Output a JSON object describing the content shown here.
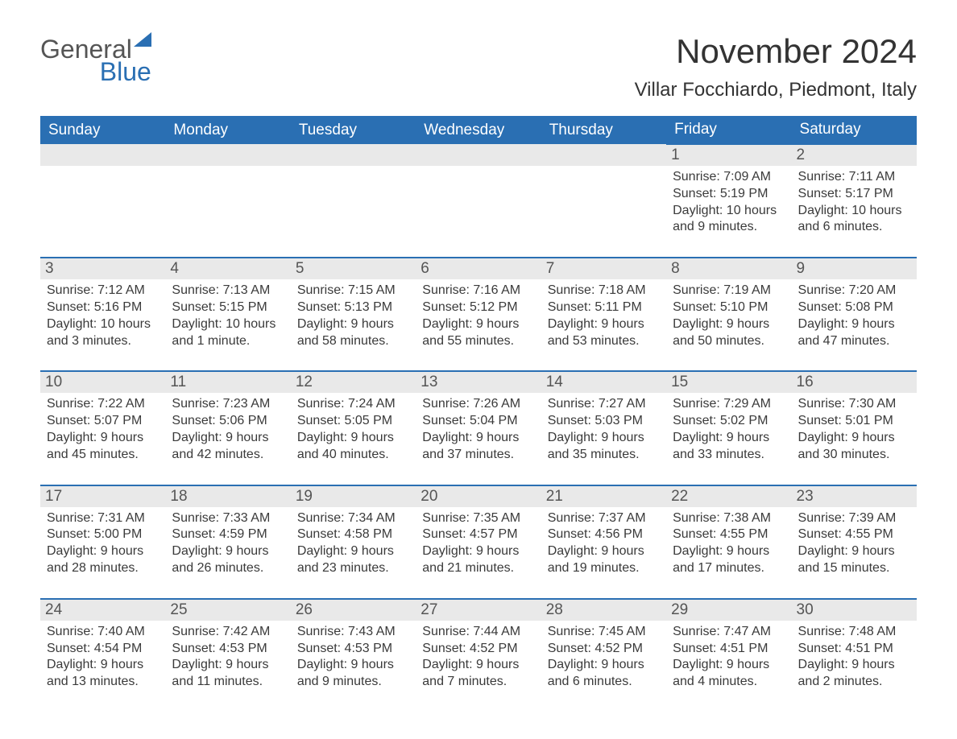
{
  "logo": {
    "part1": "General",
    "part2": "Blue"
  },
  "title": "November 2024",
  "location": "Villar Focchiardo, Piedmont, Italy",
  "colors": {
    "header_bg": "#2a6fb3",
    "header_text": "#ffffff",
    "day_num_bg": "#e9e9e9",
    "day_border": "#2a6fb3",
    "text": "#3a3a3a",
    "background": "#ffffff"
  },
  "typography": {
    "title_fontsize": 42,
    "location_fontsize": 24,
    "dayheader_fontsize": 19,
    "body_fontsize": 16
  },
  "layout": {
    "columns": 7,
    "rows": 5
  },
  "day_headers": [
    "Sunday",
    "Monday",
    "Tuesday",
    "Wednesday",
    "Thursday",
    "Friday",
    "Saturday"
  ],
  "weeks": [
    [
      null,
      null,
      null,
      null,
      null,
      {
        "n": "1",
        "sunrise": "7:09 AM",
        "sunset": "5:19 PM",
        "daylight": "10 hours and 9 minutes."
      },
      {
        "n": "2",
        "sunrise": "7:11 AM",
        "sunset": "5:17 PM",
        "daylight": "10 hours and 6 minutes."
      }
    ],
    [
      {
        "n": "3",
        "sunrise": "7:12 AM",
        "sunset": "5:16 PM",
        "daylight": "10 hours and 3 minutes."
      },
      {
        "n": "4",
        "sunrise": "7:13 AM",
        "sunset": "5:15 PM",
        "daylight": "10 hours and 1 minute."
      },
      {
        "n": "5",
        "sunrise": "7:15 AM",
        "sunset": "5:13 PM",
        "daylight": "9 hours and 58 minutes."
      },
      {
        "n": "6",
        "sunrise": "7:16 AM",
        "sunset": "5:12 PM",
        "daylight": "9 hours and 55 minutes."
      },
      {
        "n": "7",
        "sunrise": "7:18 AM",
        "sunset": "5:11 PM",
        "daylight": "9 hours and 53 minutes."
      },
      {
        "n": "8",
        "sunrise": "7:19 AM",
        "sunset": "5:10 PM",
        "daylight": "9 hours and 50 minutes."
      },
      {
        "n": "9",
        "sunrise": "7:20 AM",
        "sunset": "5:08 PM",
        "daylight": "9 hours and 47 minutes."
      }
    ],
    [
      {
        "n": "10",
        "sunrise": "7:22 AM",
        "sunset": "5:07 PM",
        "daylight": "9 hours and 45 minutes."
      },
      {
        "n": "11",
        "sunrise": "7:23 AM",
        "sunset": "5:06 PM",
        "daylight": "9 hours and 42 minutes."
      },
      {
        "n": "12",
        "sunrise": "7:24 AM",
        "sunset": "5:05 PM",
        "daylight": "9 hours and 40 minutes."
      },
      {
        "n": "13",
        "sunrise": "7:26 AM",
        "sunset": "5:04 PM",
        "daylight": "9 hours and 37 minutes."
      },
      {
        "n": "14",
        "sunrise": "7:27 AM",
        "sunset": "5:03 PM",
        "daylight": "9 hours and 35 minutes."
      },
      {
        "n": "15",
        "sunrise": "7:29 AM",
        "sunset": "5:02 PM",
        "daylight": "9 hours and 33 minutes."
      },
      {
        "n": "16",
        "sunrise": "7:30 AM",
        "sunset": "5:01 PM",
        "daylight": "9 hours and 30 minutes."
      }
    ],
    [
      {
        "n": "17",
        "sunrise": "7:31 AM",
        "sunset": "5:00 PM",
        "daylight": "9 hours and 28 minutes."
      },
      {
        "n": "18",
        "sunrise": "7:33 AM",
        "sunset": "4:59 PM",
        "daylight": "9 hours and 26 minutes."
      },
      {
        "n": "19",
        "sunrise": "7:34 AM",
        "sunset": "4:58 PM",
        "daylight": "9 hours and 23 minutes."
      },
      {
        "n": "20",
        "sunrise": "7:35 AM",
        "sunset": "4:57 PM",
        "daylight": "9 hours and 21 minutes."
      },
      {
        "n": "21",
        "sunrise": "7:37 AM",
        "sunset": "4:56 PM",
        "daylight": "9 hours and 19 minutes."
      },
      {
        "n": "22",
        "sunrise": "7:38 AM",
        "sunset": "4:55 PM",
        "daylight": "9 hours and 17 minutes."
      },
      {
        "n": "23",
        "sunrise": "7:39 AM",
        "sunset": "4:55 PM",
        "daylight": "9 hours and 15 minutes."
      }
    ],
    [
      {
        "n": "24",
        "sunrise": "7:40 AM",
        "sunset": "4:54 PM",
        "daylight": "9 hours and 13 minutes."
      },
      {
        "n": "25",
        "sunrise": "7:42 AM",
        "sunset": "4:53 PM",
        "daylight": "9 hours and 11 minutes."
      },
      {
        "n": "26",
        "sunrise": "7:43 AM",
        "sunset": "4:53 PM",
        "daylight": "9 hours and 9 minutes."
      },
      {
        "n": "27",
        "sunrise": "7:44 AM",
        "sunset": "4:52 PM",
        "daylight": "9 hours and 7 minutes."
      },
      {
        "n": "28",
        "sunrise": "7:45 AM",
        "sunset": "4:52 PM",
        "daylight": "9 hours and 6 minutes."
      },
      {
        "n": "29",
        "sunrise": "7:47 AM",
        "sunset": "4:51 PM",
        "daylight": "9 hours and 4 minutes."
      },
      {
        "n": "30",
        "sunrise": "7:48 AM",
        "sunset": "4:51 PM",
        "daylight": "9 hours and 2 minutes."
      }
    ]
  ],
  "labels": {
    "sunrise": "Sunrise: ",
    "sunset": "Sunset: ",
    "daylight": "Daylight: "
  }
}
